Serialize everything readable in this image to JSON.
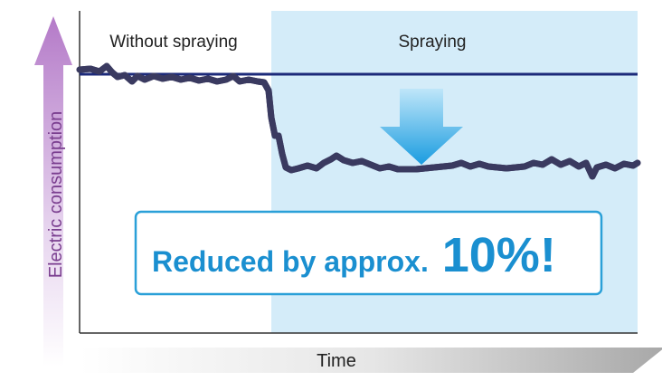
{
  "labels": {
    "without": "Without spraying",
    "with": "Spraying",
    "y_axis": "Electric consumption",
    "x_axis": "Time"
  },
  "callout": {
    "text": "Reduced by approx.",
    "highlight": "10%!"
  }
}
